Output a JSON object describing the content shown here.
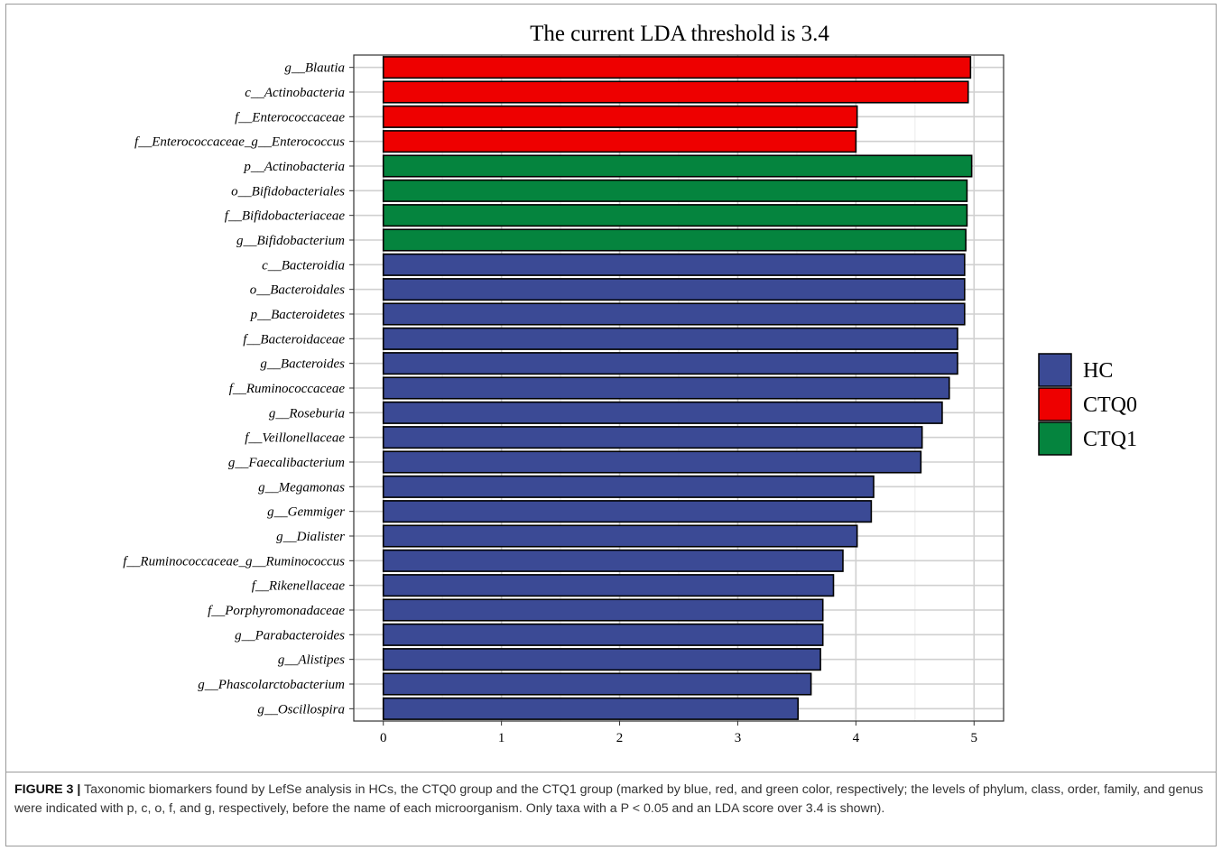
{
  "chart_data": {
    "type": "bar",
    "orientation": "horizontal",
    "title": "The current LDA threshold is 3.4",
    "xlabel": "",
    "ylabel": "",
    "xlim": [
      -0.25,
      5.25
    ],
    "xticks": [
      0,
      1,
      2,
      3,
      4,
      5
    ],
    "grid": true,
    "legend_position": "right",
    "groups": [
      {
        "name": "HC",
        "color": "#3b4a95"
      },
      {
        "name": "CTQ0",
        "color": "#ee0000"
      },
      {
        "name": "CTQ1",
        "color": "#05843e"
      }
    ],
    "categories": [
      "g__Blautia",
      "c__Actinobacteria",
      "f__Enterococcaceae",
      "f__Enterococcaceae_g__Enterococcus",
      "p__Actinobacteria",
      "o__Bifidobacteriales",
      "f__Bifidobacteriaceae",
      "g__Bifidobacterium",
      "c__Bacteroidia",
      "o__Bacteroidales",
      "p__Bacteroidetes",
      "f__Bacteroidaceae",
      "g__Bacteroides",
      "f__Ruminococcaceae",
      "g__Roseburia",
      "f__Veillonellaceae",
      "g__Faecalibacterium",
      "g__Megamonas",
      "g__Gemmiger",
      "g__Dialister",
      "f__Ruminococcaceae_g__Ruminococcus",
      "f__Rikenellaceae",
      "f__Porphyromonadaceae",
      "g__Parabacteroides",
      "g__Alistipes",
      "g__Phascolarctobacterium",
      "g__Oscillospira"
    ],
    "values": [
      4.97,
      4.95,
      4.01,
      4.0,
      4.98,
      4.94,
      4.94,
      4.93,
      4.92,
      4.92,
      4.92,
      4.86,
      4.86,
      4.79,
      4.73,
      4.56,
      4.55,
      4.15,
      4.13,
      4.01,
      3.89,
      3.81,
      3.72,
      3.72,
      3.7,
      3.62,
      3.51
    ],
    "group_of_bar": [
      "CTQ0",
      "CTQ0",
      "CTQ0",
      "CTQ0",
      "CTQ1",
      "CTQ1",
      "CTQ1",
      "CTQ1",
      "HC",
      "HC",
      "HC",
      "HC",
      "HC",
      "HC",
      "HC",
      "HC",
      "HC",
      "HC",
      "HC",
      "HC",
      "HC",
      "HC",
      "HC",
      "HC",
      "HC",
      "HC",
      "HC"
    ]
  },
  "caption": {
    "label": "FIGURE 3 |",
    "text": "Taxonomic biomarkers found by LefSe analysis in HCs, the CTQ0 group and the CTQ1 group (marked by blue, red, and green color, respectively; the levels of phylum, class, order, family, and genus were indicated with p, c, o, f, and g, respectively, before the name of each microorganism. Only taxa with a P < 0.05 and an LDA score over 3.4 is shown)."
  }
}
